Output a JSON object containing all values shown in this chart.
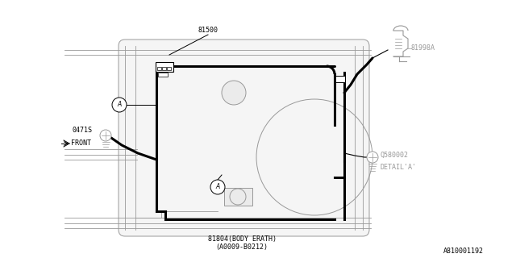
{
  "bg_color": "#ffffff",
  "line_color": "#000000",
  "gray_color": "#999999",
  "fig_width": 6.4,
  "fig_height": 3.2,
  "dpi": 100,
  "title_bottom": "81804(BODY ERATH)",
  "title_bottom2": "(A0009-B0212)",
  "label_81500": "81500",
  "label_81998A": "81998A",
  "label_0471S": "0471S",
  "label_FRONT": "FRONT",
  "label_Q580002": "Q580002",
  "label_DETAIL_A": "DETAIL'A'",
  "label_A810001192": "A810001192"
}
